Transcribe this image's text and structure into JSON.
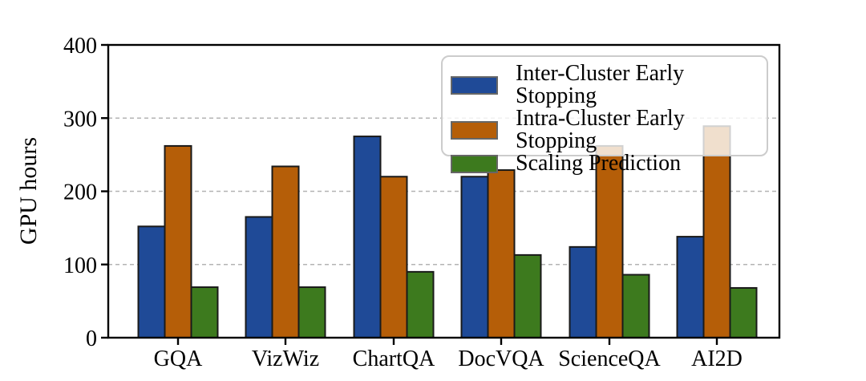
{
  "chart_data": {
    "type": "bar",
    "title": "",
    "xlabel": "",
    "ylabel": "GPU hours",
    "ylim": [
      0,
      400
    ],
    "yticks": [
      0,
      100,
      200,
      300,
      400
    ],
    "grid": {
      "axis": "y",
      "style": "dashed",
      "lines_at": [
        100,
        200,
        300
      ]
    },
    "legend_position": "upper right inside axes",
    "legend_background": "rgba(255,255,255,0.8)",
    "categories": [
      "GQA",
      "VizWiz",
      "ChartQA",
      "DocVQA",
      "ScienceQA",
      "AI2D"
    ],
    "series": [
      {
        "name": "Inter-Cluster Early Stopping",
        "color": "#1f4a97",
        "values": [
          152,
          165,
          275,
          220,
          124,
          138
        ]
      },
      {
        "name": "Intra-Cluster Early Stopping",
        "color": "#b55e08",
        "values": [
          262,
          234,
          220,
          229,
          262,
          289
        ]
      },
      {
        "name": "Scaling Prediction",
        "color": "#3d7a1e",
        "values": [
          69,
          69,
          90,
          113,
          86,
          68
        ]
      }
    ],
    "bar_edge_color": "#1a1a1a",
    "spine_color": "#000000",
    "gridline_color": "#b3b3b3"
  }
}
